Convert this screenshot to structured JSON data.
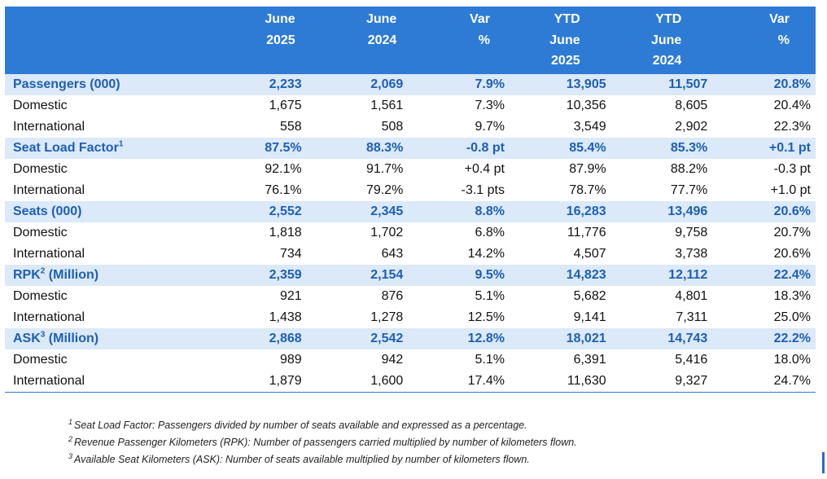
{
  "header": {
    "columns": [
      [
        "June",
        "2025"
      ],
      [
        "June",
        "2024"
      ],
      [
        "Var",
        "%"
      ],
      [
        "YTD",
        "June",
        "2025"
      ],
      [
        "YTD",
        "June",
        "2024"
      ],
      [
        "Var",
        "%"
      ]
    ]
  },
  "rows": [
    {
      "type": "group",
      "label": "Passengers (000)",
      "sup": "",
      "values": [
        "2,233",
        "2,069",
        "7.9%",
        "13,905",
        "11,507",
        "20.8%"
      ]
    },
    {
      "type": "sub",
      "label": "Domestic",
      "sup": "",
      "values": [
        "1,675",
        "1,561",
        "7.3%",
        "10,356",
        "8,605",
        "20.4%"
      ]
    },
    {
      "type": "sub",
      "label": "International",
      "sup": "",
      "values": [
        "558",
        "508",
        "9.7%",
        "3,549",
        "2,902",
        "22.3%"
      ]
    },
    {
      "type": "group",
      "label": "Seat Load Factor",
      "sup": "1",
      "values": [
        "87.5%",
        "88.3%",
        "-0.8 pt",
        "85.4%",
        "85.3%",
        "+0.1 pt"
      ]
    },
    {
      "type": "sub",
      "label": "Domestic",
      "sup": "",
      "values": [
        "92.1%",
        "91.7%",
        "+0.4 pt",
        "87.9%",
        "88.2%",
        "-0.3 pt"
      ]
    },
    {
      "type": "sub",
      "label": "International",
      "sup": "",
      "values": [
        "76.1%",
        "79.2%",
        "-3.1 pts",
        "78.7%",
        "77.7%",
        "+1.0 pt"
      ]
    },
    {
      "type": "group",
      "label": "Seats (000)",
      "sup": "",
      "values": [
        "2,552",
        "2,345",
        "8.8%",
        "16,283",
        "13,496",
        "20.6%"
      ]
    },
    {
      "type": "sub",
      "label": "Domestic",
      "sup": "",
      "values": [
        "1,818",
        "1,702",
        "6.8%",
        "11,776",
        "9,758",
        "20.7%"
      ]
    },
    {
      "type": "sub",
      "label": "International",
      "sup": "",
      "values": [
        "734",
        "643",
        "14.2%",
        "4,507",
        "3,738",
        "20.6%"
      ]
    },
    {
      "type": "group",
      "label": "RPK",
      "sup": "2",
      "suffix": " (Million)",
      "values": [
        "2,359",
        "2,154",
        "9.5%",
        "14,823",
        "12,112",
        "22.4%"
      ]
    },
    {
      "type": "sub",
      "label": "Domestic",
      "sup": "",
      "values": [
        "921",
        "876",
        "5.1%",
        "5,682",
        "4,801",
        "18.3%"
      ]
    },
    {
      "type": "sub",
      "label": "International",
      "sup": "",
      "values": [
        "1,438",
        "1,278",
        "12.5%",
        "9,141",
        "7,311",
        "25.0%"
      ]
    },
    {
      "type": "group",
      "label": "ASK",
      "sup": "3",
      "suffix": " (Million)",
      "values": [
        "2,868",
        "2,542",
        "12.8%",
        "18,021",
        "14,743",
        "22.2%"
      ]
    },
    {
      "type": "sub",
      "label": "Domestic",
      "sup": "",
      "values": [
        "989",
        "942",
        "5.1%",
        "6,391",
        "5,416",
        "18.0%"
      ]
    },
    {
      "type": "sub",
      "label": "International",
      "sup": "",
      "values": [
        "1,879",
        "1,600",
        "17.4%",
        "11,630",
        "9,327",
        "24.7%"
      ]
    }
  ],
  "footnotes": [
    {
      "num": "1",
      "text": "Seat Load Factor: Passengers divided by number of seats available and expressed as a percentage."
    },
    {
      "num": "2",
      "text": "Revenue Passenger Kilometers (RPK): Number of passengers carried multiplied by number of kilometers flown."
    },
    {
      "num": "3",
      "text": "Available Seat Kilometers (ASK): Number of seats available multiplied by number of kilometers flown."
    }
  ],
  "colors": {
    "header_bg": "#2e7bd6",
    "group_bg": "#dbe9f9",
    "group_text": "#1e5fb3"
  }
}
